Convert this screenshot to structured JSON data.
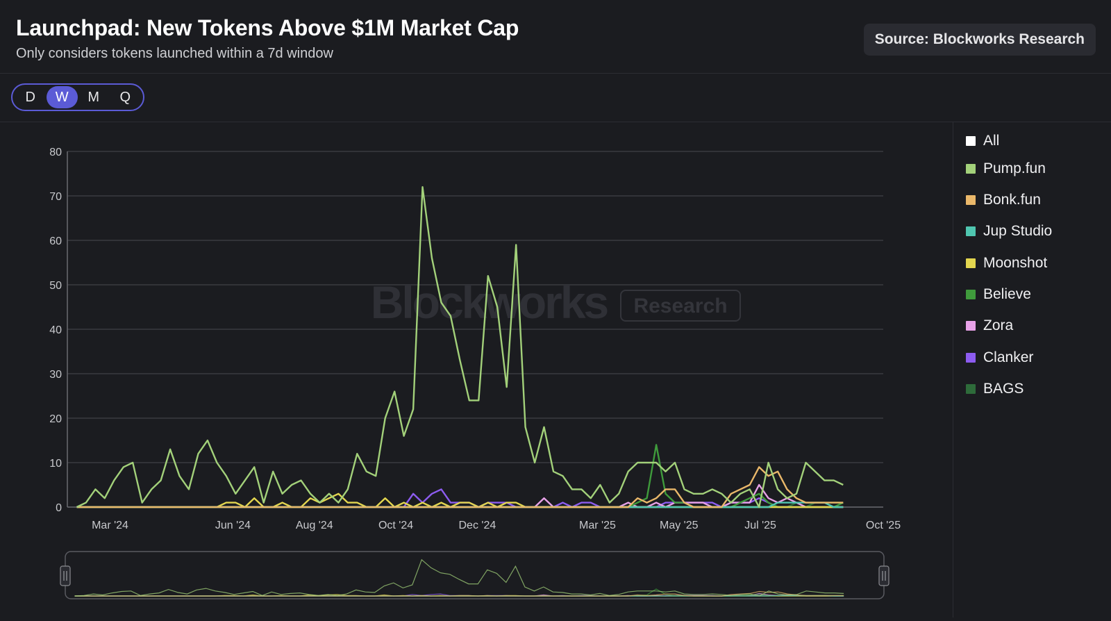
{
  "header": {
    "title": "Launchpad: New Tokens Above $1M Market Cap",
    "subtitle": "Only considers tokens launched within a 7d window",
    "source": "Source: Blockworks Research"
  },
  "period_selector": {
    "options": [
      "D",
      "W",
      "M",
      "Q"
    ],
    "active": "W"
  },
  "watermark": {
    "brand": "Blockworks",
    "badge": "Research"
  },
  "legend": {
    "items": [
      {
        "label": "All",
        "color": "#ffffff"
      },
      {
        "label": "Pump.fun",
        "color": "#a3d17a"
      },
      {
        "label": "Bonk.fun",
        "color": "#eab86a"
      },
      {
        "label": "Jup Studio",
        "color": "#4fc6b0"
      },
      {
        "label": "Moonshot",
        "color": "#e3d64f"
      },
      {
        "label": "Believe",
        "color": "#3f9b3c"
      },
      {
        "label": "Zora",
        "color": "#e8a2e8"
      },
      {
        "label": "Clanker",
        "color": "#8d5cf0"
      },
      {
        "label": "BAGS",
        "color": "#2e6b3a"
      }
    ]
  },
  "chart_data": {
    "type": "line",
    "title": "Launchpad: New Tokens Above $1M Market Cap",
    "xlabel": "",
    "ylabel": "",
    "ylim": [
      0,
      80
    ],
    "yticks": [
      0,
      10,
      20,
      30,
      40,
      50,
      60,
      70,
      80
    ],
    "xticks": [
      "Mar '24",
      "Jun '24",
      "Aug '24",
      "Oct '24",
      "Dec '24",
      "Mar '25",
      "May '25",
      "Jul '25",
      "Oct '25"
    ],
    "x_start": "2024-02-05",
    "x_step_days": 7,
    "grid": true,
    "legend_position": "right",
    "series": [
      {
        "name": "Pump.fun",
        "color": "#a3d17a",
        "values": [
          0,
          1,
          4,
          2,
          6,
          9,
          10,
          1,
          4,
          6,
          13,
          7,
          4,
          12,
          15,
          10,
          7,
          3,
          6,
          9,
          1,
          8,
          3,
          5,
          6,
          3,
          1,
          3,
          1,
          4,
          12,
          8,
          7,
          20,
          26,
          16,
          22,
          72,
          56,
          46,
          43,
          33,
          24,
          24,
          52,
          45,
          27,
          59,
          18,
          10,
          18,
          8,
          7,
          4,
          4,
          2,
          5,
          1,
          3,
          8,
          10,
          10,
          10,
          8,
          10,
          4,
          3,
          3,
          4,
          3,
          1,
          3,
          4,
          0,
          10,
          4,
          2,
          3,
          10,
          8,
          6,
          6,
          5
        ]
      },
      {
        "name": "Bonk.fun",
        "color": "#eab86a",
        "values": [
          0,
          0,
          0,
          0,
          0,
          0,
          0,
          0,
          0,
          0,
          0,
          0,
          0,
          0,
          0,
          0,
          0,
          0,
          0,
          0,
          0,
          0,
          0,
          0,
          0,
          0,
          0,
          0,
          0,
          0,
          0,
          0,
          0,
          0,
          0,
          0,
          0,
          0,
          0,
          0,
          0,
          0,
          0,
          0,
          0,
          0,
          0,
          0,
          0,
          0,
          0,
          0,
          0,
          0,
          0,
          0,
          0,
          0,
          0,
          0,
          2,
          1,
          2,
          4,
          4,
          1,
          0,
          0,
          0,
          0,
          3,
          4,
          5,
          9,
          7,
          8,
          4,
          2,
          1,
          1,
          1,
          1,
          1
        ]
      },
      {
        "name": "Jup Studio",
        "color": "#4fc6b0",
        "values": [
          0,
          0,
          0,
          0,
          0,
          0,
          0,
          0,
          0,
          0,
          0,
          0,
          0,
          0,
          0,
          0,
          0,
          0,
          0,
          0,
          0,
          0,
          0,
          0,
          0,
          0,
          0,
          0,
          0,
          0,
          0,
          0,
          0,
          0,
          0,
          0,
          0,
          0,
          0,
          0,
          0,
          0,
          0,
          0,
          0,
          0,
          0,
          0,
          0,
          0,
          0,
          0,
          0,
          0,
          0,
          0,
          0,
          0,
          0,
          0,
          0,
          0,
          0,
          0,
          0,
          0,
          0,
          0,
          0,
          0,
          0,
          0,
          0,
          0,
          0,
          1,
          1,
          1,
          1,
          1,
          1,
          0,
          0
        ]
      },
      {
        "name": "Moonshot",
        "color": "#e3d64f",
        "values": [
          0,
          0,
          0,
          0,
          0,
          0,
          0,
          0,
          0,
          0,
          0,
          0,
          0,
          0,
          0,
          0,
          1,
          1,
          0,
          2,
          0,
          0,
          1,
          0,
          0,
          2,
          1,
          2,
          3,
          1,
          1,
          0,
          0,
          2,
          0,
          1,
          0,
          1,
          0,
          1,
          0,
          1,
          1,
          0,
          1,
          0,
          1,
          1,
          0,
          0,
          0,
          0,
          0,
          0,
          0,
          0,
          0,
          0,
          0,
          0,
          0,
          0,
          0,
          0,
          0,
          0,
          0,
          0,
          0,
          0,
          0,
          0,
          0,
          0,
          0,
          0,
          0,
          0,
          0,
          0,
          0,
          0,
          0
        ]
      },
      {
        "name": "Believe",
        "color": "#3f9b3c",
        "values": [
          0,
          0,
          0,
          0,
          0,
          0,
          0,
          0,
          0,
          0,
          0,
          0,
          0,
          0,
          0,
          0,
          0,
          0,
          0,
          0,
          0,
          0,
          0,
          0,
          0,
          0,
          0,
          0,
          0,
          0,
          0,
          0,
          0,
          0,
          0,
          0,
          0,
          0,
          0,
          0,
          0,
          0,
          0,
          0,
          0,
          0,
          0,
          0,
          0,
          0,
          0,
          0,
          0,
          0,
          0,
          0,
          0,
          0,
          0,
          0,
          1,
          2,
          14,
          3,
          1,
          1,
          0,
          0,
          0,
          0,
          0,
          1,
          2,
          3,
          1,
          0,
          0,
          0,
          0,
          0,
          0,
          0,
          1
        ]
      },
      {
        "name": "Zora",
        "color": "#e8a2e8",
        "values": [
          0,
          0,
          0,
          0,
          0,
          0,
          0,
          0,
          0,
          0,
          0,
          0,
          0,
          0,
          0,
          0,
          0,
          0,
          0,
          0,
          0,
          0,
          0,
          0,
          0,
          0,
          0,
          0,
          0,
          0,
          0,
          0,
          0,
          0,
          0,
          0,
          0,
          0,
          0,
          0,
          0,
          0,
          0,
          0,
          0,
          0,
          0,
          0,
          0,
          0,
          2,
          0,
          0,
          0,
          0,
          0,
          0,
          0,
          0,
          1,
          0,
          0,
          1,
          0,
          1,
          1,
          1,
          1,
          0,
          0,
          1,
          1,
          1,
          5,
          2,
          1,
          2,
          1,
          0,
          0,
          0,
          0,
          0
        ]
      },
      {
        "name": "Clanker",
        "color": "#8d5cf0",
        "values": [
          0,
          0,
          0,
          0,
          0,
          0,
          0,
          0,
          0,
          0,
          0,
          0,
          0,
          0,
          0,
          0,
          0,
          0,
          0,
          0,
          0,
          0,
          0,
          0,
          0,
          0,
          0,
          0,
          0,
          0,
          0,
          0,
          0,
          0,
          0,
          0,
          3,
          1,
          3,
          4,
          1,
          1,
          1,
          0,
          1,
          1,
          1,
          0,
          0,
          0,
          0,
          0,
          1,
          0,
          1,
          1,
          0,
          0,
          0,
          0,
          0,
          0,
          0,
          1,
          1,
          1,
          1,
          1,
          1,
          0,
          1,
          1,
          1,
          2,
          1,
          0,
          0,
          0,
          0,
          0,
          0,
          0,
          0
        ]
      },
      {
        "name": "BAGS",
        "color": "#2e6b3a",
        "values": [
          0,
          0,
          0,
          0,
          0,
          0,
          0,
          0,
          0,
          0,
          0,
          0,
          0,
          0,
          0,
          0,
          0,
          0,
          0,
          0,
          0,
          0,
          0,
          0,
          0,
          0,
          0,
          0,
          0,
          0,
          0,
          0,
          0,
          0,
          0,
          0,
          0,
          0,
          0,
          0,
          0,
          0,
          0,
          0,
          0,
          0,
          0,
          0,
          0,
          0,
          0,
          0,
          0,
          0,
          0,
          0,
          0,
          0,
          0,
          0,
          0,
          0,
          0,
          0,
          0,
          0,
          0,
          0,
          0,
          0,
          0,
          0,
          0,
          0,
          0,
          0,
          0,
          1,
          0,
          1,
          1,
          1,
          1
        ]
      }
    ]
  }
}
